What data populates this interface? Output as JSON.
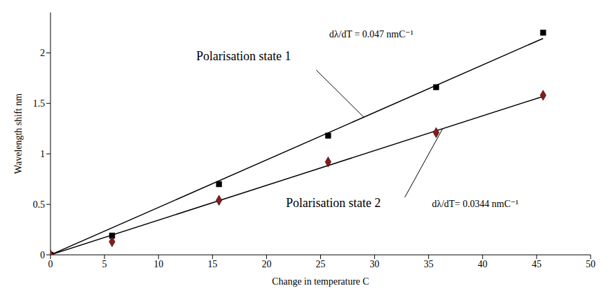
{
  "chart_data": {
    "type": "scatter",
    "xlabel": "Change in temperature C",
    "ylabel": "Wavelength shift nm",
    "xlim": [
      0,
      50
    ],
    "xticks": [
      0,
      5,
      10,
      15,
      20,
      25,
      30,
      35,
      40,
      45,
      50
    ],
    "ylim": [
      0,
      2.4
    ],
    "yticks": [
      0,
      0.5,
      1,
      1.5,
      2
    ],
    "grid": false,
    "series": [
      {
        "name": "Polarisation state 1",
        "color": "#000000",
        "marker": "square",
        "x": [
          0,
          5.7,
          15.6,
          25.7,
          35.7,
          45.6
        ],
        "values": [
          0,
          0.19,
          0.7,
          1.18,
          1.66,
          2.2
        ],
        "trendline": {
          "slope": 0.047,
          "label": "dλ/dT = 0.047 nmC⁻¹"
        }
      },
      {
        "name": "Polarisation state 2",
        "color": "#8b1a1a",
        "marker": "diamond",
        "x": [
          0,
          5.7,
          15.6,
          25.7,
          35.7,
          45.6
        ],
        "values": [
          0,
          0.13,
          0.54,
          0.92,
          1.21,
          1.58
        ],
        "trendline": {
          "slope": 0.0344,
          "label": "dλ/dT= 0.0344 nmC⁻¹"
        }
      }
    ]
  }
}
